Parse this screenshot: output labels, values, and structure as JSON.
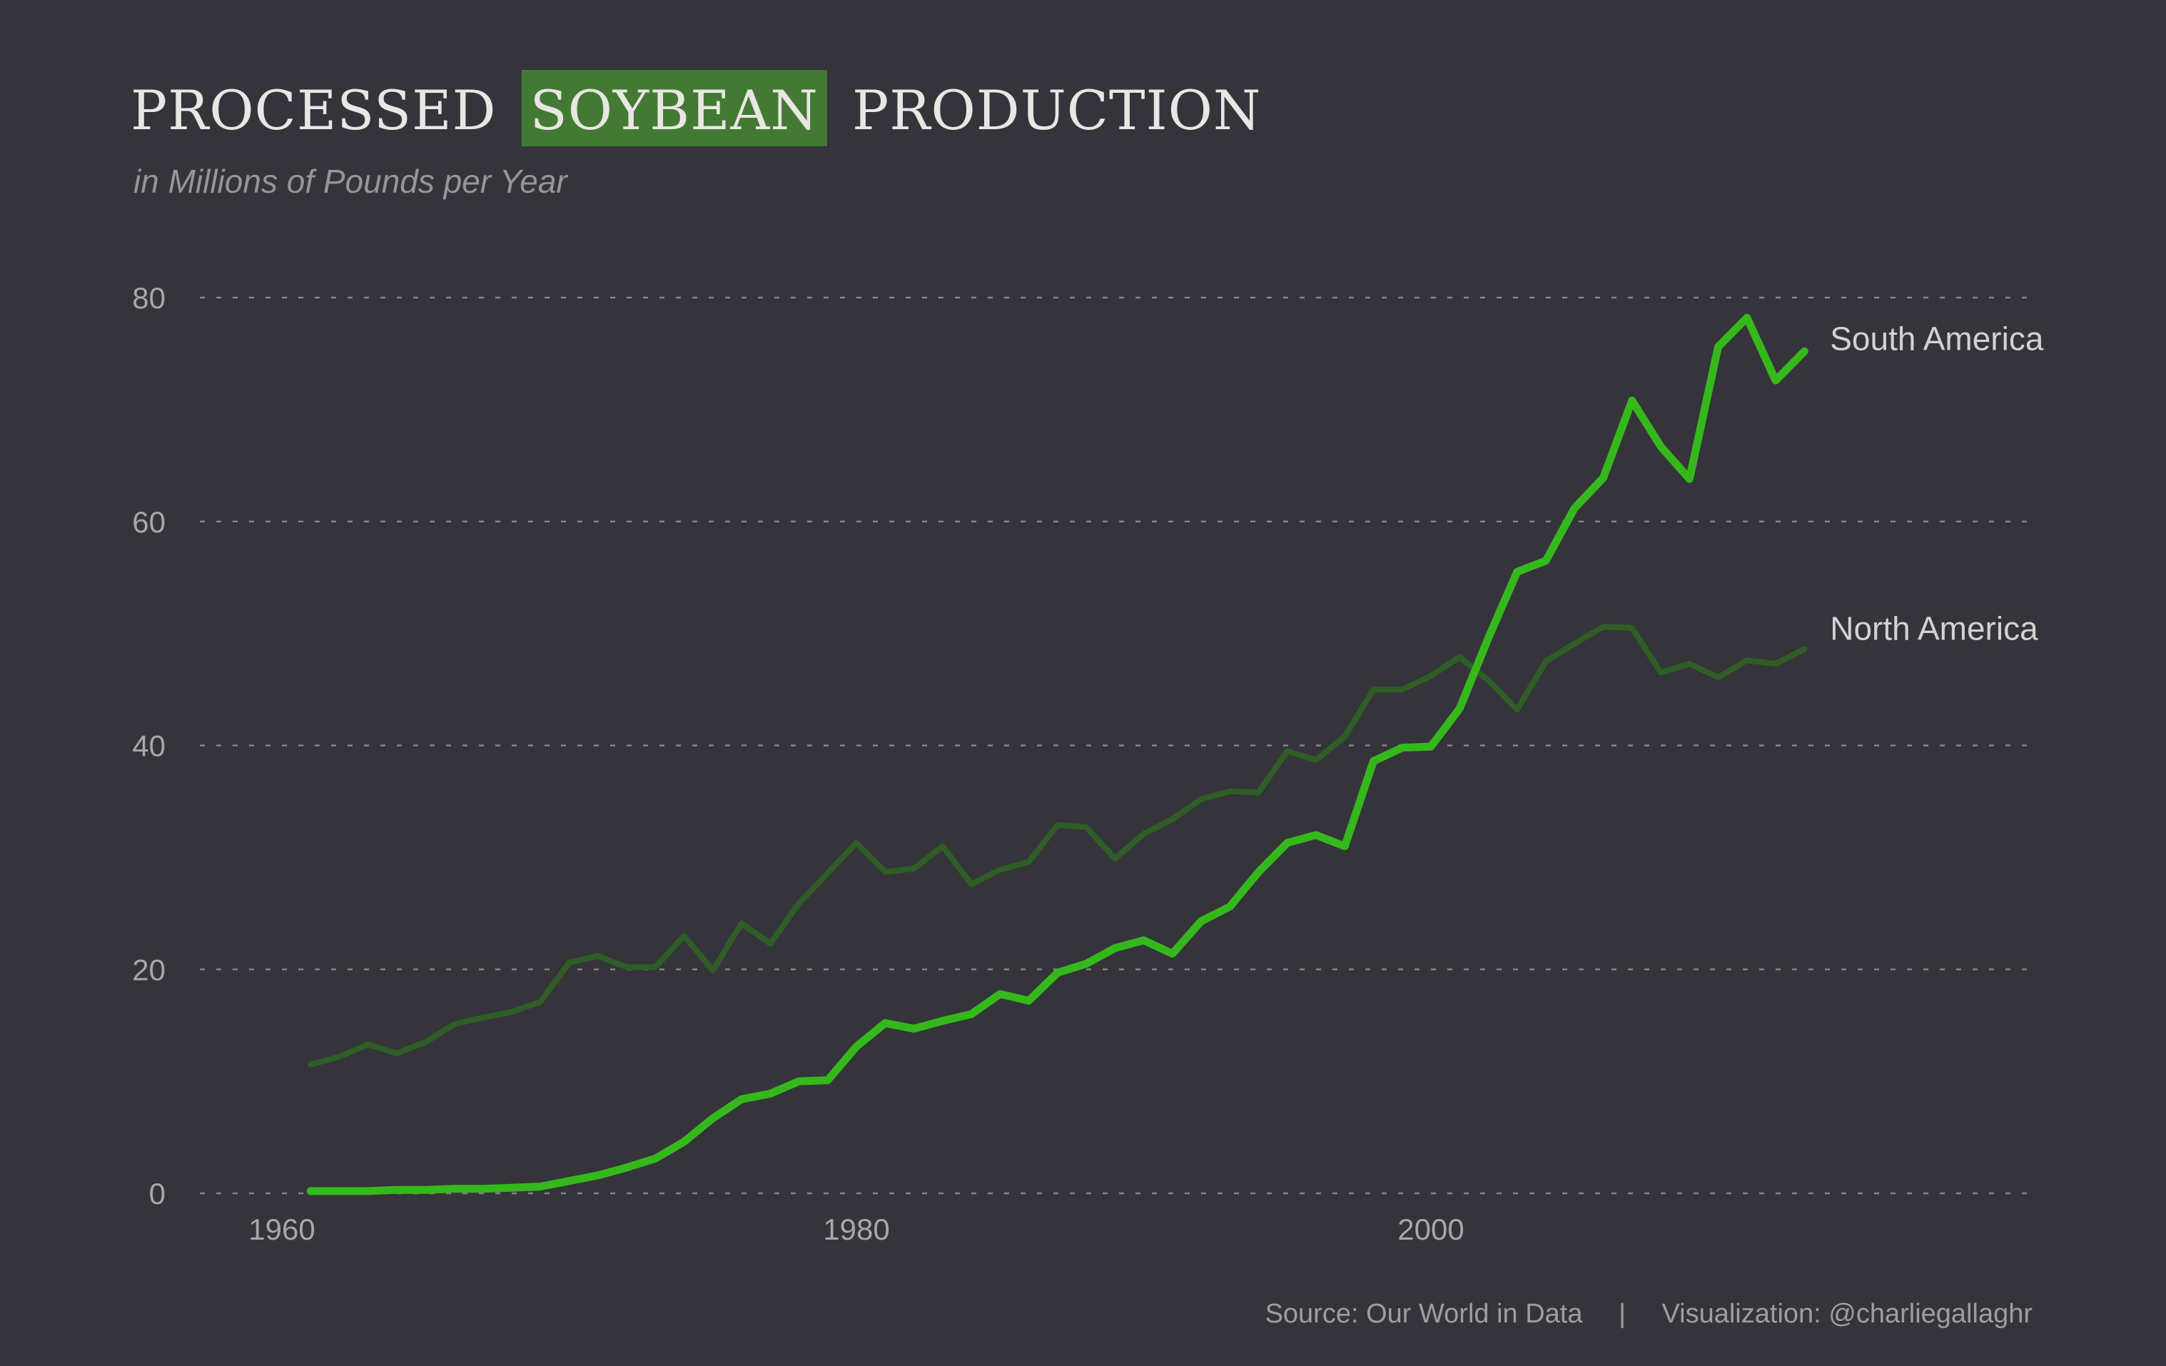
{
  "title": {
    "before": "PROCESSED",
    "highlight": "SOYBEAN",
    "after": "PRODUCTION"
  },
  "subtitle": "in Millions of Pounds per Year",
  "caption": {
    "source": "Source: Our World in Data",
    "separator": "|",
    "credit": "Visualization: @charliegallaghr"
  },
  "colors": {
    "background": "#35343a",
    "title": "#e9e6e4",
    "title_highlight_bg": "#437a33",
    "subtitle": "#97949a",
    "grid": "#86838a",
    "tick_label": "#aaa6ab",
    "caption": "#a09da2",
    "series_label": "#d4d1d3"
  },
  "chart_data": {
    "type": "line",
    "title": "PROCESSED SOYBEAN PRODUCTION",
    "subtitle": "in Millions of Pounds per Year",
    "xlabel": "",
    "ylabel": "",
    "xlim": [
      1957,
      2023
    ],
    "ylim": [
      0,
      80
    ],
    "x_ticks": [
      1960,
      1980,
      2000
    ],
    "y_ticks": [
      0,
      20,
      40,
      60,
      80
    ],
    "grid": "horizontal dashed",
    "legend": "direct labels at line ends (right)",
    "x": [
      1961,
      1962,
      1963,
      1964,
      1965,
      1966,
      1967,
      1968,
      1969,
      1970,
      1971,
      1972,
      1973,
      1974,
      1975,
      1976,
      1977,
      1978,
      1979,
      1980,
      1981,
      1982,
      1983,
      1984,
      1985,
      1986,
      1987,
      1988,
      1989,
      1990,
      1991,
      1992,
      1993,
      1994,
      1995,
      1996,
      1997,
      1998,
      1999,
      2000,
      2001,
      2002,
      2003,
      2004,
      2005,
      2006,
      2007,
      2008,
      2009,
      2010,
      2011,
      2012,
      2013
    ],
    "series": [
      {
        "name": "North America",
        "color": "#2e5e25",
        "values": [
          11.5,
          12.2,
          13.3,
          12.5,
          13.5,
          15.1,
          15.7,
          16.2,
          17.1,
          20.6,
          21.2,
          20.2,
          20.2,
          23.0,
          19.9,
          24.1,
          22.3,
          25.9,
          28.6,
          31.3,
          28.7,
          29.0,
          31.0,
          27.6,
          28.9,
          29.6,
          32.9,
          32.7,
          29.9,
          32.1,
          33.4,
          35.2,
          35.9,
          35.8,
          39.5,
          38.7,
          40.8,
          45.0,
          45.0,
          46.2,
          47.9,
          45.8,
          43.2,
          47.5,
          49.1,
          50.6,
          50.5,
          46.5,
          47.3,
          46.1,
          47.6,
          47.3,
          48.6
        ]
      },
      {
        "name": "South America",
        "color": "#35b81c",
        "values": [
          0.2,
          0.2,
          0.2,
          0.3,
          0.3,
          0.4,
          0.4,
          0.5,
          0.6,
          1.1,
          1.6,
          2.3,
          3.1,
          4.6,
          6.7,
          8.4,
          8.9,
          10.0,
          10.1,
          13.1,
          15.2,
          14.7,
          15.4,
          16.0,
          17.8,
          17.2,
          19.7,
          20.5,
          21.9,
          22.6,
          21.4,
          24.3,
          25.6,
          28.7,
          31.3,
          32.0,
          31.0,
          38.6,
          39.8,
          39.9,
          43.3,
          49.6,
          55.5,
          56.5,
          61.2,
          63.9,
          70.8,
          66.7,
          63.8,
          75.6,
          78.2,
          72.6,
          75.2
        ]
      }
    ]
  }
}
